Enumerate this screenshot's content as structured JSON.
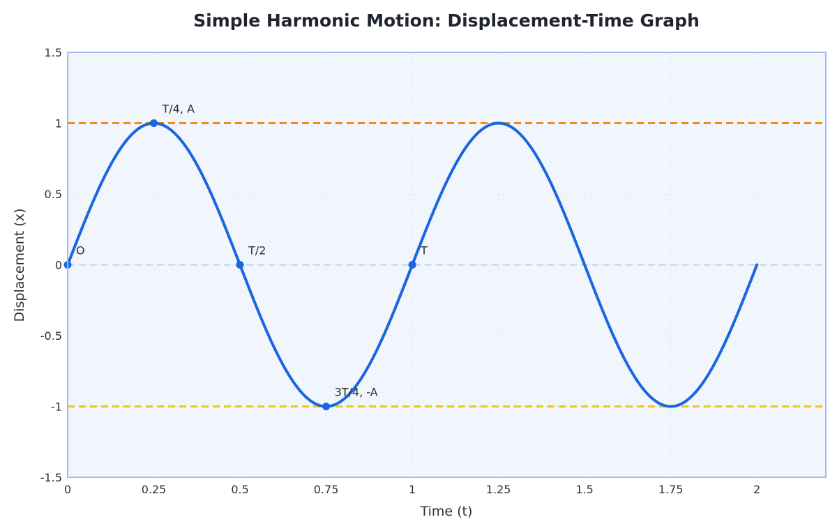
{
  "chart_data": {
    "type": "line",
    "title": "Simple Harmonic Motion: Displacement-Time Graph",
    "xlabel": "Time (t)",
    "ylabel": "Displacement (x)",
    "xlim": [
      0,
      2.2
    ],
    "ylim": [
      -1.5,
      1.5
    ],
    "x_ticks": [
      0,
      0.25,
      0.5,
      0.75,
      1,
      1.25,
      1.5,
      1.75,
      2
    ],
    "x_tick_labels": [
      "0",
      "0.25",
      "0.5",
      "0.75",
      "1",
      "1.25",
      "1.5",
      "1.75",
      "2"
    ],
    "y_ticks": [
      1.5,
      1,
      0.5,
      0,
      -0.5,
      -1,
      -1.5
    ],
    "y_tick_labels": [
      "1.5",
      "1",
      "0.5",
      "0",
      "-0.5",
      "-1",
      "-1.5"
    ],
    "grid": true,
    "series": [
      {
        "function": "sin",
        "amplitude": 1,
        "period": 1,
        "x_range": [
          0,
          2
        ],
        "x": [
          0,
          0.125,
          0.25,
          0.375,
          0.5,
          0.625,
          0.75,
          0.875,
          1,
          1.125,
          1.25,
          1.375,
          1.5,
          1.625,
          1.75,
          1.875,
          2
        ],
        "y": [
          0,
          0.707,
          1,
          0.707,
          0,
          -0.707,
          -1,
          -0.707,
          0,
          0.707,
          1,
          0.707,
          0,
          -0.707,
          -1,
          -0.707,
          0
        ],
        "color": "#1a66e0"
      }
    ],
    "reference_lines": [
      {
        "y": 1,
        "color": "#f28a1c",
        "style": "dashed"
      },
      {
        "y": -1,
        "color": "#f2c31c",
        "style": "dashed"
      },
      {
        "y": 0,
        "color": "#bcd3f3",
        "style": "dashed"
      }
    ],
    "key_points": [
      {
        "x": 0,
        "y": 0,
        "label": "O"
      },
      {
        "x": 0.25,
        "y": 1,
        "label": "T/4, A"
      },
      {
        "x": 0.5,
        "y": 0,
        "label": "T/2"
      },
      {
        "x": 0.75,
        "y": -1,
        "label": "3T/4, -A"
      },
      {
        "x": 1,
        "y": 0,
        "label": "T"
      }
    ]
  },
  "colors": {
    "plot_background": "#f1f6fc",
    "plot_border": "#9dbdf2",
    "curve": "#1a66e0",
    "grid": "#dde7f5"
  }
}
